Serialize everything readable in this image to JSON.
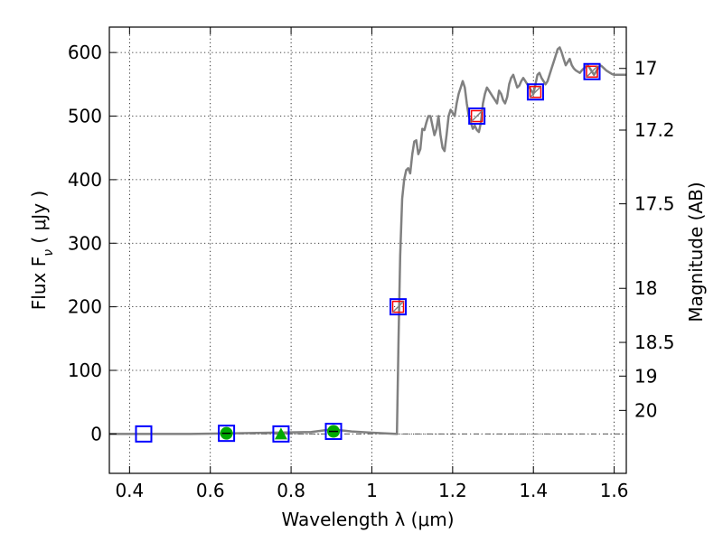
{
  "chart_data": {
    "type": "scatter",
    "title": "",
    "xlabel": "Wavelength  λ (μm)",
    "ylabel": "Flux  F",
    "ylabel_subscript": "ν",
    "ylabel_units": " ( μJy )",
    "y2label": "Magnitude (AB)",
    "xlim": [
      0.35,
      1.63
    ],
    "ylim": [
      -62,
      640
    ],
    "grid": true,
    "x_ticks": [
      0.4,
      0.6,
      0.8,
      1.0,
      1.2,
      1.4,
      1.6
    ],
    "x_tick_labels": [
      "0.4",
      "0.6",
      "0.8",
      "1",
      "1.2",
      "1.4",
      "1.6"
    ],
    "y_ticks": [
      0,
      100,
      200,
      300,
      400,
      500,
      600
    ],
    "y_tick_labels": [
      "0",
      "100",
      "200",
      "300",
      "400",
      "500",
      "600"
    ],
    "y2_ticks": [
      {
        "label": "17",
        "flux": 575
      },
      {
        "label": "17.2",
        "flux": 478
      },
      {
        "label": "17.5",
        "flux": 362
      },
      {
        "label": "18",
        "flux": 229
      },
      {
        "label": "18.5",
        "flux": 144
      },
      {
        "label": "19",
        "flux": 91
      },
      {
        "label": "20",
        "flux": 37
      }
    ],
    "colors": {
      "spectrum": "#808080",
      "observed": "#0000ff",
      "model": "#ff0000",
      "nondetection": "#00aa00",
      "zero_line": "#555555"
    },
    "series": [
      {
        "kind": "line",
        "x": [
          0.35,
          0.45,
          0.55,
          0.65,
          0.75,
          0.85,
          0.9,
          0.95,
          1.0,
          1.062,
          1.066,
          1.07,
          1.075,
          1.08,
          1.085,
          1.09,
          1.095,
          1.1,
          1.105,
          1.11,
          1.115,
          1.12,
          1.125,
          1.13,
          1.135,
          1.14,
          1.145,
          1.15,
          1.155,
          1.16,
          1.165,
          1.17,
          1.175,
          1.18,
          1.185,
          1.19,
          1.195,
          1.2,
          1.205,
          1.21,
          1.215,
          1.22,
          1.225,
          1.23,
          1.235,
          1.24,
          1.245,
          1.25,
          1.255,
          1.26,
          1.265,
          1.27,
          1.275,
          1.28,
          1.285,
          1.29,
          1.295,
          1.3,
          1.305,
          1.31,
          1.315,
          1.32,
          1.325,
          1.33,
          1.335,
          1.34,
          1.345,
          1.35,
          1.355,
          1.36,
          1.365,
          1.37,
          1.375,
          1.38,
          1.385,
          1.39,
          1.395,
          1.4,
          1.405,
          1.41,
          1.415,
          1.42,
          1.425,
          1.43,
          1.435,
          1.44,
          1.445,
          1.45,
          1.455,
          1.46,
          1.465,
          1.47,
          1.475,
          1.48,
          1.485,
          1.49,
          1.495,
          1.5,
          1.505,
          1.51,
          1.515,
          1.52,
          1.525,
          1.53,
          1.535,
          1.54,
          1.545,
          1.55,
          1.555,
          1.56,
          1.565,
          1.57,
          1.575,
          1.58,
          1.585,
          1.59,
          1.595,
          1.6,
          1.605,
          1.61,
          1.615,
          1.62,
          1.625,
          1.63
        ],
        "y": [
          0,
          0,
          0,
          1,
          2,
          3,
          7,
          4,
          2,
          0,
          150,
          280,
          370,
          400,
          415,
          418,
          410,
          440,
          460,
          462,
          440,
          448,
          480,
          478,
          490,
          500,
          500,
          485,
          470,
          480,
          500,
          470,
          450,
          445,
          470,
          500,
          510,
          505,
          500,
          520,
          535,
          545,
          555,
          545,
          520,
          500,
          490,
          480,
          485,
          478,
          475,
          490,
          520,
          535,
          545,
          540,
          535,
          530,
          525,
          520,
          540,
          535,
          525,
          520,
          530,
          550,
          560,
          565,
          555,
          545,
          548,
          555,
          560,
          555,
          550,
          545,
          540,
          535,
          550,
          565,
          568,
          560,
          555,
          550,
          555,
          565,
          575,
          585,
          595,
          605,
          608,
          600,
          590,
          580,
          585,
          590,
          580,
          575,
          572,
          570,
          568,
          572,
          575,
          578,
          580,
          575,
          570,
          565,
          570,
          575,
          580,
          578,
          575,
          572,
          570,
          568,
          566,
          565,
          565,
          565,
          565,
          565,
          565,
          565
        ]
      },
      {
        "kind": "observed",
        "points": [
          {
            "x": 0.435,
            "y": 0
          },
          {
            "x": 0.64,
            "y": 1
          },
          {
            "x": 0.775,
            "y": 0
          },
          {
            "x": 0.905,
            "y": 4
          },
          {
            "x": 1.065,
            "y": 200
          },
          {
            "x": 1.26,
            "y": 500
          },
          {
            "x": 1.405,
            "y": 538
          },
          {
            "x": 1.545,
            "y": 570
          }
        ]
      },
      {
        "kind": "model",
        "points": [
          {
            "x": 1.065,
            "y": 200
          },
          {
            "x": 1.26,
            "y": 500
          },
          {
            "x": 1.405,
            "y": 538
          },
          {
            "x": 1.545,
            "y": 570
          }
        ]
      },
      {
        "kind": "nondetection",
        "points": [
          {
            "x": 0.64,
            "y": 1,
            "marker": "circle"
          },
          {
            "x": 0.775,
            "y": 0,
            "marker": "triangle"
          },
          {
            "x": 0.905,
            "y": 4,
            "marker": "circle"
          }
        ]
      }
    ]
  }
}
